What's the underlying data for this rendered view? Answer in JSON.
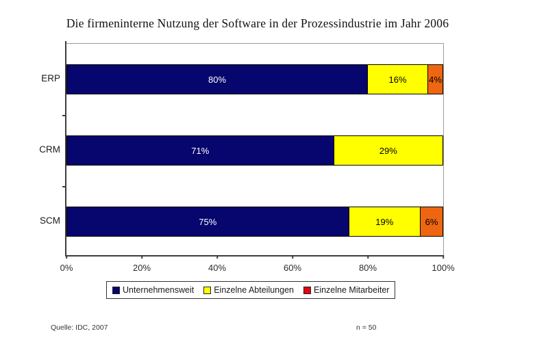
{
  "title": "Die firmeninterne Nutzung der Software in der Prozessindustrie im Jahr 2006",
  "footer": {
    "source": "Quelle: IDC, 2007",
    "sample_size": "n = 50"
  },
  "chart_data": {
    "type": "bar",
    "variant": "horizontal-stacked",
    "title": "Die firmeninterne Nutzung der Software in der Prozessindustrie im Jahr 2006",
    "categories": [
      "ERP",
      "CRM",
      "SCM"
    ],
    "series": [
      {
        "name": "Unternehmensweit",
        "values": [
          80,
          71,
          75
        ],
        "color": "#06066e",
        "legend_color": "#06066e",
        "label_color": "#ffffff"
      },
      {
        "name": "Einzelne Abteilungen",
        "values": [
          16,
          29,
          19
        ],
        "color": "#ffff00",
        "legend_color": "#ffff00",
        "label_color": "#000000"
      },
      {
        "name": "Einzelne Mitarbeiter",
        "values": [
          4,
          0,
          6
        ],
        "color": "#ee6611",
        "legend_color": "#e00613",
        "label_color": "#000000"
      }
    ],
    "value_suffix": "%",
    "x_ticks": [
      "0%",
      "20%",
      "40%",
      "60%",
      "80%",
      "100%"
    ],
    "x_tick_values": [
      0,
      20,
      40,
      60,
      80,
      100
    ],
    "xlim": [
      0,
      100
    ],
    "grid": false,
    "legend_position": "bottom"
  }
}
